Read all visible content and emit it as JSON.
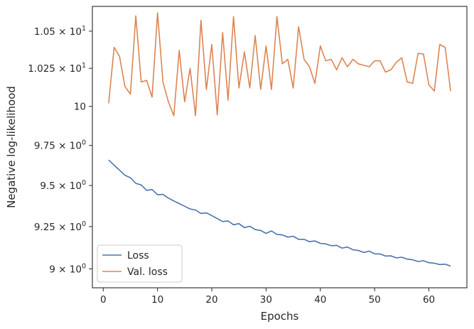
{
  "chart_data": {
    "type": "line",
    "xlabel": "Epochs",
    "ylabel": "Negative log-likelihood",
    "xlim": [
      -2,
      67
    ],
    "ylim": [
      8.89,
      10.67
    ],
    "y_scale": "log",
    "grid": false,
    "legend_placement": "lower-left",
    "x_ticks": [
      0,
      10,
      20,
      30,
      40,
      50,
      60
    ],
    "x_tick_labels": [
      "0",
      "10",
      "20",
      "30",
      "40",
      "50",
      "60"
    ],
    "y_ticks": [
      9.0,
      9.25,
      9.5,
      9.75,
      10.0,
      10.25,
      10.5
    ],
    "y_tick_labels": [
      {
        "base": "9",
        "exp": "0",
        "mult": true
      },
      {
        "base": "9.25",
        "exp": "0",
        "mult": true
      },
      {
        "base": "9.5",
        "exp": "0",
        "mult": true
      },
      {
        "base": "9.75",
        "exp": "0",
        "mult": true
      },
      {
        "base": "10",
        "exp": "1",
        "mult": false
      },
      {
        "base": "1.025",
        "exp": "1",
        "mult": true
      },
      {
        "base": "1.05",
        "exp": "1",
        "mult": true
      }
    ],
    "x": [
      1,
      2,
      3,
      4,
      5,
      6,
      7,
      8,
      9,
      10,
      11,
      12,
      13,
      14,
      15,
      16,
      17,
      18,
      19,
      20,
      21,
      22,
      23,
      24,
      25,
      26,
      27,
      28,
      29,
      30,
      31,
      32,
      33,
      34,
      35,
      36,
      37,
      38,
      39,
      40,
      41,
      42,
      43,
      44,
      45,
      46,
      47,
      48,
      49,
      50,
      51,
      52,
      53,
      54,
      55,
      56,
      57,
      58,
      59,
      60,
      61,
      62,
      63,
      64
    ],
    "series": [
      {
        "name": "Loss",
        "color": "#4c72b0",
        "values": [
          9.658,
          9.625,
          9.595,
          9.563,
          9.548,
          9.513,
          9.503,
          9.47,
          9.475,
          9.443,
          9.445,
          9.423,
          9.405,
          9.389,
          9.373,
          9.356,
          9.35,
          9.329,
          9.333,
          9.316,
          9.298,
          9.28,
          9.284,
          9.261,
          9.268,
          9.244,
          9.252,
          9.232,
          9.227,
          9.209,
          9.224,
          9.203,
          9.2,
          9.187,
          9.192,
          9.174,
          9.174,
          9.16,
          9.164,
          9.15,
          9.147,
          9.136,
          9.138,
          9.122,
          9.128,
          9.112,
          9.108,
          9.096,
          9.104,
          9.088,
          9.087,
          9.075,
          9.076,
          9.064,
          9.068,
          9.057,
          9.053,
          9.043,
          9.047,
          9.036,
          9.033,
          9.025,
          9.027,
          9.016
        ]
      },
      {
        "name": "Val. loss",
        "color": "#dd8452",
        "values": [
          10.02,
          10.39,
          10.33,
          10.13,
          10.08,
          10.605,
          10.16,
          10.17,
          10.06,
          10.625,
          10.16,
          10.03,
          9.94,
          10.37,
          10.03,
          10.25,
          9.94,
          10.575,
          10.11,
          10.41,
          9.945,
          10.49,
          10.04,
          10.6,
          10.12,
          10.36,
          10.12,
          10.47,
          10.11,
          10.4,
          10.11,
          10.6,
          10.28,
          10.31,
          10.12,
          10.53,
          10.31,
          10.26,
          10.15,
          10.4,
          10.3,
          10.31,
          10.24,
          10.32,
          10.26,
          10.31,
          10.28,
          10.27,
          10.26,
          10.3,
          10.3,
          10.225,
          10.24,
          10.29,
          10.32,
          10.16,
          10.15,
          10.35,
          10.345,
          10.14,
          10.1,
          10.41,
          10.39,
          10.1
        ]
      }
    ]
  }
}
